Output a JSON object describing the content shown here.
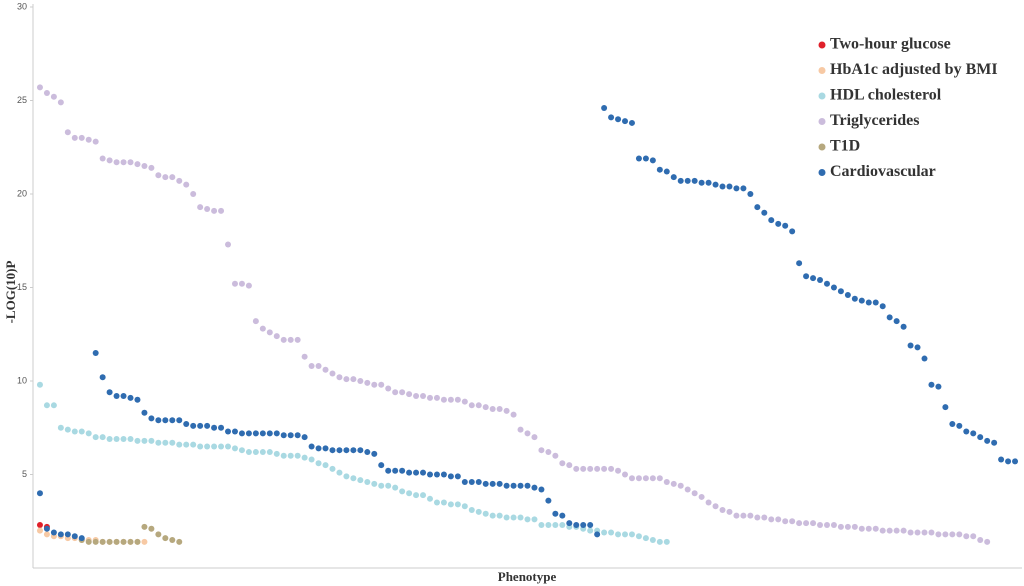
{
  "chart_data": {
    "type": "scatter",
    "x_label": "Phenotype",
    "y_label": "-LOG(10)P",
    "xlim": [
      0,
      142
    ],
    "ylim": [
      0,
      30
    ],
    "yticks": [
      5,
      10,
      15,
      20,
      25,
      30
    ],
    "grid": false,
    "legend": "top-right",
    "series": [
      {
        "name": "Two-hour glucose",
        "color": "#e0202a",
        "x": [
          1,
          2
        ],
        "values": [
          2.3,
          2.2
        ]
      },
      {
        "name": "HbA1c adjusted by BMI",
        "color": "#f7c9a4",
        "x": [
          1,
          2,
          3,
          4,
          5,
          6,
          7,
          8,
          9,
          10,
          11,
          12,
          13,
          14,
          15,
          16
        ],
        "values": [
          2.0,
          1.8,
          1.7,
          1.7,
          1.6,
          1.6,
          1.5,
          1.5,
          1.5,
          1.4,
          1.4,
          1.4,
          1.4,
          1.4,
          1.4,
          1.4
        ]
      },
      {
        "name": "HDL cholesterol",
        "color": "#a9d9e2",
        "x": [
          1,
          2,
          3,
          4,
          5,
          6,
          7,
          8,
          9,
          10,
          11,
          12,
          13,
          14,
          15,
          16,
          17,
          18,
          19,
          20,
          21,
          22,
          23,
          24,
          25,
          26,
          27,
          28,
          29,
          30,
          31,
          32,
          33,
          34,
          35,
          36,
          37,
          38,
          39,
          40,
          41,
          42,
          43,
          44,
          45,
          46,
          47,
          48,
          49,
          50,
          51,
          52,
          53,
          54,
          55,
          56,
          57,
          58,
          59,
          60,
          61,
          62,
          63,
          64,
          65,
          66,
          67,
          68,
          69,
          70,
          71,
          72,
          73,
          74,
          75,
          76,
          77,
          78,
          79,
          80,
          81,
          82,
          83,
          84,
          85,
          86,
          87,
          88,
          89,
          90,
          91
        ],
        "values": [
          9.8,
          8.7,
          8.7,
          7.5,
          7.4,
          7.3,
          7.3,
          7.2,
          7.0,
          7.0,
          6.9,
          6.9,
          6.9,
          6.9,
          6.8,
          6.8,
          6.8,
          6.7,
          6.7,
          6.7,
          6.6,
          6.6,
          6.6,
          6.5,
          6.5,
          6.5,
          6.5,
          6.5,
          6.4,
          6.3,
          6.2,
          6.2,
          6.2,
          6.2,
          6.1,
          6.0,
          6.0,
          6.0,
          5.9,
          5.8,
          5.6,
          5.5,
          5.3,
          5.1,
          4.9,
          4.8,
          4.7,
          4.6,
          4.5,
          4.4,
          4.4,
          4.3,
          4.1,
          4.0,
          3.9,
          3.9,
          3.7,
          3.5,
          3.5,
          3.4,
          3.4,
          3.3,
          3.1,
          3.0,
          2.9,
          2.8,
          2.8,
          2.7,
          2.7,
          2.7,
          2.6,
          2.6,
          2.3,
          2.3,
          2.3,
          2.3,
          2.2,
          2.2,
          2.1,
          2.0,
          2.0,
          1.9,
          1.9,
          1.8,
          1.8,
          1.8,
          1.7,
          1.6,
          1.5,
          1.4,
          1.4
        ]
      },
      {
        "name": "Triglycerides",
        "color": "#cbbcdc",
        "x": [
          1,
          2,
          3,
          4,
          5,
          6,
          7,
          8,
          9,
          10,
          11,
          12,
          13,
          14,
          15,
          16,
          17,
          18,
          19,
          20,
          21,
          22,
          23,
          24,
          25,
          26,
          27,
          28,
          29,
          30,
          31,
          32,
          33,
          34,
          35,
          36,
          37,
          38,
          39,
          40,
          41,
          42,
          43,
          44,
          45,
          46,
          47,
          48,
          49,
          50,
          51,
          52,
          53,
          54,
          55,
          56,
          57,
          58,
          59,
          60,
          61,
          62,
          63,
          64,
          65,
          66,
          67,
          68,
          69,
          70,
          71,
          72,
          73,
          74,
          75,
          76,
          77,
          78,
          79,
          80,
          81,
          82,
          83,
          84,
          85,
          86,
          87,
          88,
          89,
          90,
          91,
          92,
          93,
          94,
          95,
          96,
          97,
          98,
          99,
          100,
          101,
          102,
          103,
          104,
          105,
          106,
          107,
          108,
          109,
          110,
          111,
          112,
          113,
          114,
          115,
          116,
          117,
          118,
          119,
          120,
          121,
          122,
          123,
          124,
          125,
          126,
          127,
          128,
          129,
          130,
          131,
          132,
          133,
          134,
          135,
          136,
          137
        ],
        "values": [
          25.7,
          25.4,
          25.2,
          24.9,
          23.3,
          23.0,
          23.0,
          22.9,
          22.8,
          21.9,
          21.8,
          21.7,
          21.7,
          21.7,
          21.6,
          21.5,
          21.4,
          21.0,
          20.9,
          20.9,
          20.7,
          20.5,
          20.0,
          19.3,
          19.2,
          19.1,
          19.1,
          17.3,
          15.2,
          15.2,
          15.1,
          13.2,
          12.8,
          12.6,
          12.4,
          12.2,
          12.2,
          12.2,
          11.3,
          10.8,
          10.8,
          10.6,
          10.4,
          10.2,
          10.1,
          10.1,
          10.0,
          9.9,
          9.8,
          9.8,
          9.6,
          9.4,
          9.4,
          9.3,
          9.2,
          9.2,
          9.1,
          9.1,
          9.0,
          9.0,
          9.0,
          8.9,
          8.7,
          8.7,
          8.6,
          8.5,
          8.5,
          8.4,
          8.2,
          7.4,
          7.2,
          7.0,
          6.3,
          6.2,
          6.0,
          5.6,
          5.5,
          5.3,
          5.3,
          5.3,
          5.3,
          5.3,
          5.3,
          5.2,
          5.0,
          4.8,
          4.8,
          4.8,
          4.8,
          4.8,
          4.6,
          4.5,
          4.4,
          4.2,
          4.0,
          3.8,
          3.5,
          3.3,
          3.1,
          3.0,
          2.8,
          2.8,
          2.8,
          2.7,
          2.7,
          2.6,
          2.6,
          2.5,
          2.5,
          2.4,
          2.4,
          2.4,
          2.3,
          2.3,
          2.3,
          2.2,
          2.2,
          2.2,
          2.1,
          2.1,
          2.1,
          2.0,
          2.0,
          2.0,
          2.0,
          1.9,
          1.9,
          1.9,
          1.9,
          1.8,
          1.8,
          1.8,
          1.8,
          1.7,
          1.7,
          1.5,
          1.4
        ]
      },
      {
        "name": "T1D",
        "color": "#b6a87e",
        "x": [
          7,
          8,
          9,
          10,
          11,
          12,
          13,
          14,
          15,
          16,
          17,
          18,
          19,
          20,
          21
        ],
        "values": [
          1.5,
          1.4,
          1.4,
          1.4,
          1.4,
          1.4,
          1.4,
          1.4,
          1.4,
          2.2,
          2.1,
          1.8,
          1.6,
          1.5,
          1.4
        ]
      },
      {
        "name": "Cardiovascular",
        "color": "#2f6cb0",
        "x": [
          1,
          2,
          3,
          4,
          5,
          6,
          7,
          9,
          10,
          11,
          12,
          13,
          14,
          15,
          16,
          17,
          18,
          19,
          20,
          21,
          22,
          23,
          24,
          25,
          26,
          27,
          28,
          29,
          30,
          31,
          32,
          33,
          34,
          35,
          36,
          37,
          38,
          39,
          40,
          41,
          42,
          43,
          44,
          45,
          46,
          47,
          48,
          49,
          50,
          51,
          52,
          53,
          54,
          55,
          56,
          57,
          58,
          59,
          60,
          61,
          62,
          63,
          64,
          65,
          66,
          67,
          68,
          69,
          70,
          71,
          72,
          73,
          74,
          75,
          76,
          77,
          78,
          79,
          80,
          81,
          82,
          83,
          84,
          85,
          86,
          87,
          88,
          89,
          90,
          91,
          92,
          93,
          94,
          95,
          96,
          97,
          98,
          99,
          100,
          101,
          102,
          103,
          104,
          105,
          106,
          107,
          108,
          109,
          110,
          111,
          112,
          113,
          114,
          115,
          116,
          117,
          118,
          119,
          120,
          121,
          122,
          123,
          124,
          125,
          126,
          127,
          128,
          129,
          130,
          131,
          132,
          133,
          134,
          135,
          136,
          137,
          138,
          139,
          140,
          141
        ],
        "values": [
          4.0,
          2.1,
          1.9,
          1.8,
          1.8,
          1.7,
          1.6,
          11.5,
          10.2,
          9.4,
          9.2,
          9.2,
          9.1,
          9.0,
          8.3,
          8.0,
          7.9,
          7.9,
          7.9,
          7.9,
          7.7,
          7.6,
          7.6,
          7.6,
          7.5,
          7.5,
          7.3,
          7.3,
          7.2,
          7.2,
          7.2,
          7.2,
          7.2,
          7.2,
          7.1,
          7.1,
          7.1,
          7.0,
          6.5,
          6.4,
          6.4,
          6.3,
          6.3,
          6.3,
          6.3,
          6.3,
          6.2,
          6.1,
          5.5,
          5.2,
          5.2,
          5.2,
          5.1,
          5.1,
          5.1,
          5.0,
          5.0,
          5.0,
          4.9,
          4.9,
          4.6,
          4.6,
          4.6,
          4.5,
          4.5,
          4.5,
          4.4,
          4.4,
          4.4,
          4.4,
          4.3,
          4.2,
          3.6,
          2.9,
          2.8,
          2.4,
          2.3,
          2.3,
          2.3,
          1.8,
          24.6,
          24.1,
          24.0,
          23.9,
          23.8,
          21.9,
          21.9,
          21.8,
          21.3,
          21.2,
          20.9,
          20.7,
          20.7,
          20.7,
          20.6,
          20.6,
          20.5,
          20.4,
          20.4,
          20.3,
          20.3,
          20.0,
          19.3,
          19.0,
          18.6,
          18.4,
          18.3,
          18.0,
          16.3,
          15.6,
          15.5,
          15.4,
          15.2,
          15.0,
          14.8,
          14.6,
          14.4,
          14.3,
          14.2,
          14.2,
          14.0,
          13.4,
          13.2,
          12.9,
          11.9,
          11.8,
          11.2,
          9.8,
          9.7,
          8.6,
          7.7,
          7.6,
          7.3,
          7.2,
          7.0,
          6.8,
          6.7,
          5.8,
          5.7,
          5.7
        ]
      }
    ]
  }
}
